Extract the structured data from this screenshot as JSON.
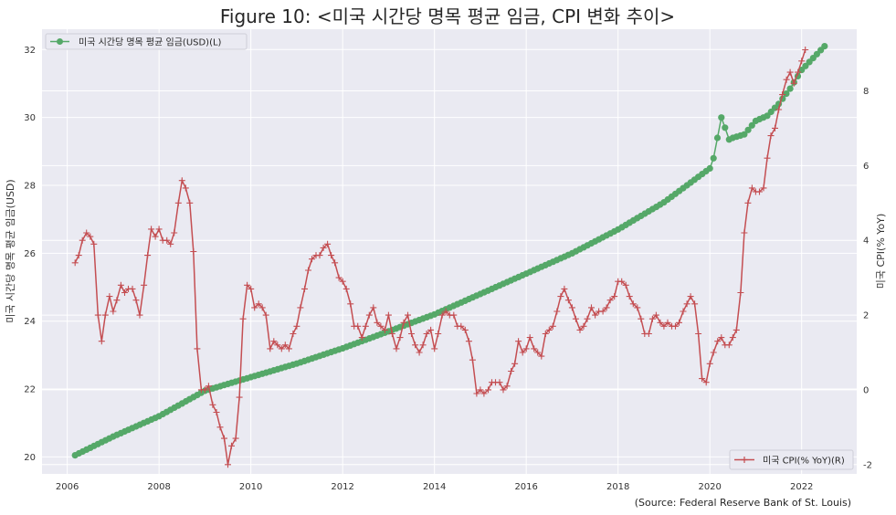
{
  "chart_data": {
    "type": "line",
    "title": "Figure 10: <미국 시간당 명목 평균 임금, CPI 변화 추이>",
    "source": "(Source: Federal Reserve Bank of St. Louis)",
    "ylabel_left": "미국 시간당 명목 평균 임금(USD)",
    "ylabel_right": "미국 CPI(% YoY)",
    "xlim": [
      2005.45,
      2023.2
    ],
    "ylim_left": [
      19.5,
      32.6
    ],
    "ylim_right": [
      -2.25,
      9.65
    ],
    "x_ticks": [
      2006,
      2008,
      2010,
      2012,
      2014,
      2016,
      2018,
      2020,
      2022
    ],
    "y_ticks_left": [
      20,
      22,
      24,
      26,
      28,
      30,
      32
    ],
    "y_ticks_right": [
      -2,
      0,
      2,
      4,
      6,
      8
    ],
    "grid": true,
    "legend_left_position": "upper-left",
    "legend_right_position": "lower-right",
    "colors": {
      "wage": "#55a868",
      "cpi": "#c44e52",
      "background": "#eaeaf2",
      "grid": "#ffffff"
    },
    "series": [
      {
        "name": "미국 시간당 명목 평균 임금(USD)(L)",
        "axis": "left",
        "marker": "circle",
        "points": [
          [
            2006.17,
            20.05
          ],
          [
            2007.0,
            20.6
          ],
          [
            2008.0,
            21.2
          ],
          [
            2009.0,
            21.95
          ],
          [
            2010.0,
            22.35
          ],
          [
            2011.0,
            22.75
          ],
          [
            2012.0,
            23.2
          ],
          [
            2013.0,
            23.7
          ],
          [
            2014.0,
            24.2
          ],
          [
            2015.0,
            24.8
          ],
          [
            2016.0,
            25.4
          ],
          [
            2017.0,
            26.0
          ],
          [
            2018.0,
            26.7
          ],
          [
            2019.0,
            27.5
          ],
          [
            2020.0,
            28.5
          ],
          [
            2020.08,
            28.8
          ],
          [
            2020.25,
            30.0
          ],
          [
            2020.33,
            29.7
          ],
          [
            2020.42,
            29.35
          ],
          [
            2020.5,
            29.4
          ],
          [
            2020.75,
            29.5
          ],
          [
            2021.0,
            29.9
          ],
          [
            2021.25,
            30.05
          ],
          [
            2021.5,
            30.4
          ],
          [
            2021.75,
            30.85
          ],
          [
            2022.0,
            31.4
          ],
          [
            2022.25,
            31.75
          ],
          [
            2022.5,
            32.1
          ]
        ]
      },
      {
        "name": "미국 CPI(% YoY)(R)",
        "axis": "right",
        "marker": "plus",
        "points": [
          [
            2006.17,
            3.4
          ],
          [
            2006.25,
            3.6
          ],
          [
            2006.33,
            4.0
          ],
          [
            2006.42,
            4.2
          ],
          [
            2006.5,
            4.1
          ],
          [
            2006.58,
            3.9
          ],
          [
            2006.67,
            2.0
          ],
          [
            2006.75,
            1.3
          ],
          [
            2006.83,
            2.0
          ],
          [
            2006.92,
            2.5
          ],
          [
            2007.0,
            2.1
          ],
          [
            2007.08,
            2.4
          ],
          [
            2007.17,
            2.8
          ],
          [
            2007.25,
            2.6
          ],
          [
            2007.33,
            2.7
          ],
          [
            2007.42,
            2.7
          ],
          [
            2007.5,
            2.4
          ],
          [
            2007.58,
            2.0
          ],
          [
            2007.67,
            2.8
          ],
          [
            2007.75,
            3.6
          ],
          [
            2007.83,
            4.3
          ],
          [
            2007.92,
            4.1
          ],
          [
            2008.0,
            4.3
          ],
          [
            2008.08,
            4.0
          ],
          [
            2008.17,
            4.0
          ],
          [
            2008.25,
            3.9
          ],
          [
            2008.33,
            4.2
          ],
          [
            2008.42,
            5.0
          ],
          [
            2008.5,
            5.6
          ],
          [
            2008.58,
            5.4
          ],
          [
            2008.67,
            5.0
          ],
          [
            2008.75,
            3.7
          ],
          [
            2008.83,
            1.1
          ],
          [
            2008.92,
            0.0
          ],
          [
            2009.0,
            0.0
          ],
          [
            2009.08,
            0.1
          ],
          [
            2009.17,
            -0.4
          ],
          [
            2009.25,
            -0.6
          ],
          [
            2009.33,
            -1.0
          ],
          [
            2009.42,
            -1.3
          ],
          [
            2009.5,
            -2.0
          ],
          [
            2009.58,
            -1.5
          ],
          [
            2009.67,
            -1.3
          ],
          [
            2009.75,
            -0.2
          ],
          [
            2009.83,
            1.9
          ],
          [
            2009.92,
            2.8
          ],
          [
            2010.0,
            2.7
          ],
          [
            2010.08,
            2.2
          ],
          [
            2010.17,
            2.3
          ],
          [
            2010.25,
            2.2
          ],
          [
            2010.33,
            2.0
          ],
          [
            2010.42,
            1.1
          ],
          [
            2010.5,
            1.3
          ],
          [
            2010.58,
            1.2
          ],
          [
            2010.67,
            1.1
          ],
          [
            2010.75,
            1.2
          ],
          [
            2010.83,
            1.1
          ],
          [
            2010.92,
            1.5
          ],
          [
            2011.0,
            1.7
          ],
          [
            2011.08,
            2.2
          ],
          [
            2011.17,
            2.7
          ],
          [
            2011.25,
            3.2
          ],
          [
            2011.33,
            3.5
          ],
          [
            2011.42,
            3.6
          ],
          [
            2011.5,
            3.6
          ],
          [
            2011.58,
            3.8
          ],
          [
            2011.67,
            3.9
          ],
          [
            2011.75,
            3.6
          ],
          [
            2011.83,
            3.4
          ],
          [
            2011.92,
            3.0
          ],
          [
            2012.0,
            2.9
          ],
          [
            2012.08,
            2.7
          ],
          [
            2012.17,
            2.3
          ],
          [
            2012.25,
            1.7
          ],
          [
            2012.33,
            1.7
          ],
          [
            2012.42,
            1.4
          ],
          [
            2012.5,
            1.7
          ],
          [
            2012.58,
            2.0
          ],
          [
            2012.67,
            2.2
          ],
          [
            2012.75,
            1.8
          ],
          [
            2012.83,
            1.7
          ],
          [
            2012.92,
            1.6
          ],
          [
            2013.0,
            2.0
          ],
          [
            2013.08,
            1.5
          ],
          [
            2013.17,
            1.1
          ],
          [
            2013.25,
            1.4
          ],
          [
            2013.33,
            1.8
          ],
          [
            2013.42,
            2.0
          ],
          [
            2013.5,
            1.5
          ],
          [
            2013.58,
            1.2
          ],
          [
            2013.67,
            1.0
          ],
          [
            2013.75,
            1.2
          ],
          [
            2013.83,
            1.5
          ],
          [
            2013.92,
            1.6
          ],
          [
            2014.0,
            1.1
          ],
          [
            2014.08,
            1.5
          ],
          [
            2014.17,
            2.0
          ],
          [
            2014.25,
            2.1
          ],
          [
            2014.33,
            2.0
          ],
          [
            2014.42,
            2.0
          ],
          [
            2014.5,
            1.7
          ],
          [
            2014.58,
            1.7
          ],
          [
            2014.67,
            1.6
          ],
          [
            2014.75,
            1.3
          ],
          [
            2014.83,
            0.8
          ],
          [
            2014.92,
            -0.1
          ],
          [
            2015.0,
            0.0
          ],
          [
            2015.08,
            -0.1
          ],
          [
            2015.17,
            0.0
          ],
          [
            2015.25,
            0.2
          ],
          [
            2015.33,
            0.2
          ],
          [
            2015.42,
            0.2
          ],
          [
            2015.5,
            0.0
          ],
          [
            2015.58,
            0.1
          ],
          [
            2015.67,
            0.5
          ],
          [
            2015.75,
            0.7
          ],
          [
            2015.83,
            1.3
          ],
          [
            2015.92,
            1.0
          ],
          [
            2016.0,
            1.1
          ],
          [
            2016.08,
            1.4
          ],
          [
            2016.17,
            1.1
          ],
          [
            2016.25,
            1.0
          ],
          [
            2016.33,
            0.9
          ],
          [
            2016.42,
            1.5
          ],
          [
            2016.5,
            1.6
          ],
          [
            2016.58,
            1.7
          ],
          [
            2016.67,
            2.1
          ],
          [
            2016.75,
            2.5
          ],
          [
            2016.83,
            2.7
          ],
          [
            2016.92,
            2.4
          ],
          [
            2017.0,
            2.2
          ],
          [
            2017.08,
            1.9
          ],
          [
            2017.17,
            1.6
          ],
          [
            2017.25,
            1.7
          ],
          [
            2017.33,
            1.9
          ],
          [
            2017.42,
            2.2
          ],
          [
            2017.5,
            2.0
          ],
          [
            2017.58,
            2.1
          ],
          [
            2017.67,
            2.1
          ],
          [
            2017.75,
            2.2
          ],
          [
            2017.83,
            2.4
          ],
          [
            2017.92,
            2.5
          ],
          [
            2018.0,
            2.9
          ],
          [
            2018.08,
            2.9
          ],
          [
            2018.17,
            2.8
          ],
          [
            2018.25,
            2.5
          ],
          [
            2018.33,
            2.3
          ],
          [
            2018.42,
            2.2
          ],
          [
            2018.5,
            1.9
          ],
          [
            2018.58,
            1.5
          ],
          [
            2018.67,
            1.5
          ],
          [
            2018.75,
            1.9
          ],
          [
            2018.83,
            2.0
          ],
          [
            2018.92,
            1.8
          ],
          [
            2019.0,
            1.7
          ],
          [
            2019.08,
            1.8
          ],
          [
            2019.17,
            1.7
          ],
          [
            2019.25,
            1.7
          ],
          [
            2019.33,
            1.8
          ],
          [
            2019.42,
            2.1
          ],
          [
            2019.5,
            2.3
          ],
          [
            2019.58,
            2.5
          ],
          [
            2019.67,
            2.3
          ],
          [
            2019.75,
            1.5
          ],
          [
            2019.83,
            0.3
          ],
          [
            2019.92,
            0.2
          ],
          [
            2020.0,
            0.7
          ],
          [
            2020.08,
            1.0
          ],
          [
            2020.17,
            1.3
          ],
          [
            2020.25,
            1.4
          ],
          [
            2020.33,
            1.2
          ],
          [
            2020.42,
            1.2
          ],
          [
            2020.5,
            1.4
          ],
          [
            2020.58,
            1.6
          ],
          [
            2020.67,
            2.6
          ],
          [
            2020.75,
            4.2
          ],
          [
            2020.83,
            5.0
          ],
          [
            2020.92,
            5.4
          ],
          [
            2021.0,
            5.3
          ],
          [
            2021.08,
            5.3
          ],
          [
            2021.17,
            5.4
          ],
          [
            2021.25,
            6.2
          ],
          [
            2021.33,
            6.8
          ],
          [
            2021.42,
            7.0
          ],
          [
            2021.5,
            7.5
          ],
          [
            2021.58,
            7.9
          ],
          [
            2021.67,
            8.3
          ],
          [
            2021.75,
            8.5
          ],
          [
            2021.83,
            8.2
          ],
          [
            2021.92,
            8.5
          ],
          [
            2022.0,
            8.8
          ],
          [
            2022.08,
            9.1
          ]
        ]
      }
    ]
  }
}
